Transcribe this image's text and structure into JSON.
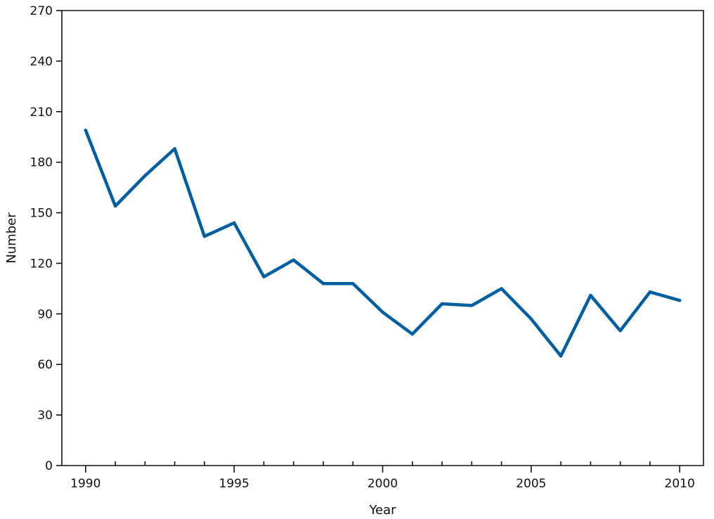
{
  "chart_data": {
    "type": "line",
    "xlabel": "Year",
    "ylabel": "Number",
    "xlim": [
      1989.2,
      2010.8
    ],
    "ylim": [
      0,
      270
    ],
    "x_ticks": [
      1990,
      1995,
      2000,
      2005,
      2010
    ],
    "x_minor_ticks": [
      1991,
      1992,
      1993,
      1994,
      1996,
      1997,
      1998,
      1999,
      2001,
      2002,
      2003,
      2004,
      2006,
      2007,
      2008,
      2009
    ],
    "y_ticks": [
      0,
      30,
      60,
      90,
      120,
      150,
      180,
      210,
      240,
      270
    ],
    "grid": false,
    "legend": "none",
    "line_color": "#005EA2",
    "series": [
      {
        "x": [
          1990,
          1991,
          1992,
          1993,
          1994,
          1995,
          1996,
          1997,
          1998,
          1999,
          2000,
          2001,
          2002,
          2003,
          2004,
          2005,
          2006,
          2007,
          2008,
          2009,
          2010
        ],
        "values": [
          199,
          154,
          172,
          188,
          136,
          144,
          112,
          122,
          108,
          108,
          91,
          78,
          96,
          95,
          105,
          87,
          65,
          101,
          80,
          103,
          98
        ]
      }
    ]
  }
}
